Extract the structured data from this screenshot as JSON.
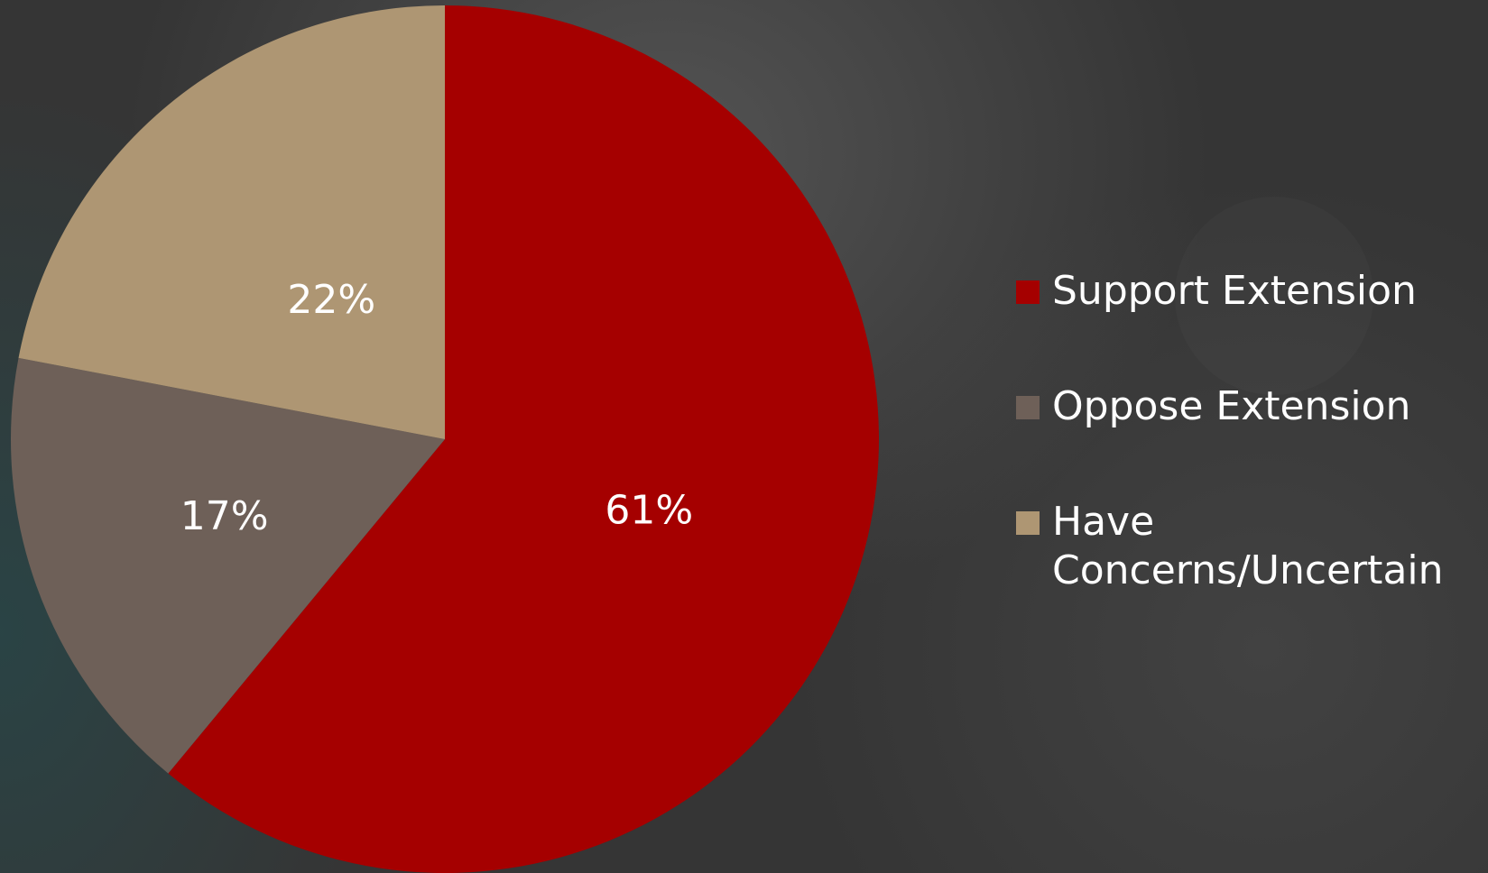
{
  "chart_data": {
    "type": "pie",
    "categories": [
      "Support Extension",
      "Oppose Extension",
      "Have Concerns/Uncertain"
    ],
    "values": [
      61,
      17,
      22
    ],
    "data_labels": [
      "61%",
      "17%",
      "22%"
    ],
    "colors": [
      "#A50000",
      "#6E6058",
      "#AE9673"
    ],
    "start_angle_deg": 0,
    "direction": "clockwise",
    "legend_position": "right",
    "title": ""
  },
  "legend": {
    "items": [
      {
        "label": "Support Extension",
        "color": "#A50000"
      },
      {
        "label": "Oppose Extension",
        "color": "#6E6058"
      },
      {
        "label": "Have Concerns/Uncertain",
        "color": "#AE9673"
      }
    ]
  }
}
